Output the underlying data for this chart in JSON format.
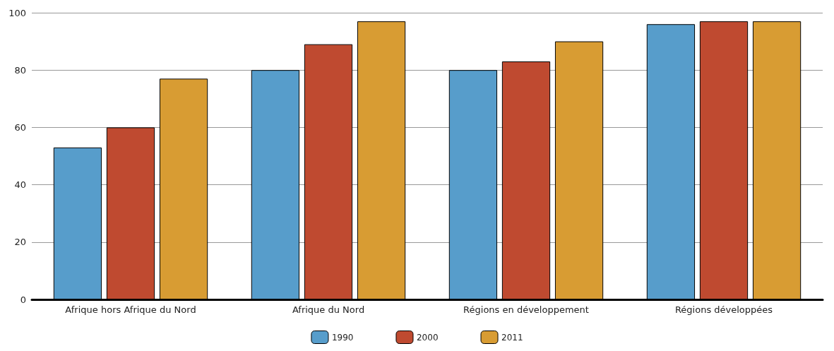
{
  "chart_data": {
    "type": "bar",
    "categories": [
      "Afrique hors Afrique du Nord",
      "Afrique du Nord",
      "Régions en développement",
      "Régions développées"
    ],
    "series": [
      {
        "name": "1990",
        "color": "#579dcb",
        "values": [
          53,
          80,
          80,
          96
        ]
      },
      {
        "name": "2000",
        "color": "#bf4a30",
        "values": [
          60,
          89,
          83,
          97
        ]
      },
      {
        "name": "2011",
        "color": "#d89c33",
        "values": [
          77,
          97,
          90,
          97
        ]
      }
    ],
    "ylim": [
      0,
      100
    ],
    "yticks": [
      0,
      20,
      40,
      60,
      80,
      100
    ],
    "grid": "y",
    "legend": "bottom"
  }
}
